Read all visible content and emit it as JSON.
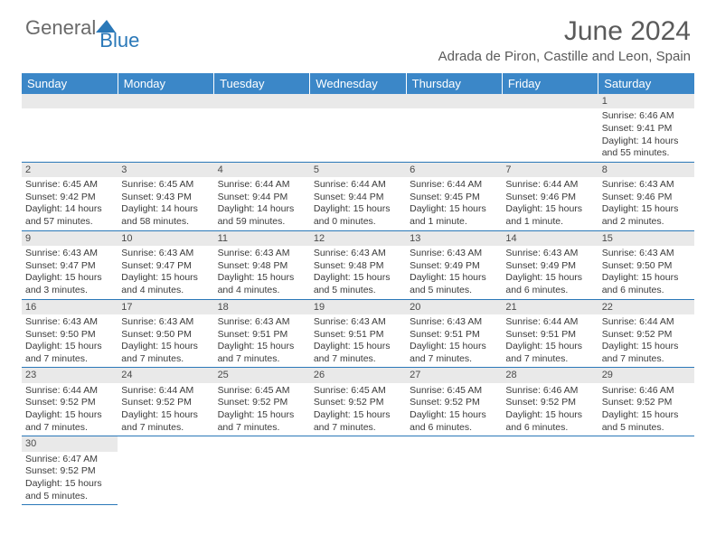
{
  "logo": {
    "text1": "General",
    "text2": "Blue"
  },
  "title": "June 2024",
  "location": "Adrada de Piron, Castille and Leon, Spain",
  "days_of_week": [
    "Sunday",
    "Monday",
    "Tuesday",
    "Wednesday",
    "Thursday",
    "Friday",
    "Saturday"
  ],
  "colors": {
    "header_bg": "#3b87c8",
    "header_text": "#ffffff",
    "row_border": "#2a78b8",
    "daynum_bg": "#e9e9e9",
    "logo_gray": "#6a6a6a",
    "logo_blue": "#2a78b8",
    "title_gray": "#5a5a5a"
  },
  "cells": [
    {
      "n": "",
      "t": ""
    },
    {
      "n": "",
      "t": ""
    },
    {
      "n": "",
      "t": ""
    },
    {
      "n": "",
      "t": ""
    },
    {
      "n": "",
      "t": ""
    },
    {
      "n": "",
      "t": ""
    },
    {
      "n": "1",
      "t": "Sunrise: 6:46 AM\nSunset: 9:41 PM\nDaylight: 14 hours and 55 minutes."
    },
    {
      "n": "2",
      "t": "Sunrise: 6:45 AM\nSunset: 9:42 PM\nDaylight: 14 hours and 57 minutes."
    },
    {
      "n": "3",
      "t": "Sunrise: 6:45 AM\nSunset: 9:43 PM\nDaylight: 14 hours and 58 minutes."
    },
    {
      "n": "4",
      "t": "Sunrise: 6:44 AM\nSunset: 9:44 PM\nDaylight: 14 hours and 59 minutes."
    },
    {
      "n": "5",
      "t": "Sunrise: 6:44 AM\nSunset: 9:44 PM\nDaylight: 15 hours and 0 minutes."
    },
    {
      "n": "6",
      "t": "Sunrise: 6:44 AM\nSunset: 9:45 PM\nDaylight: 15 hours and 1 minute."
    },
    {
      "n": "7",
      "t": "Sunrise: 6:44 AM\nSunset: 9:46 PM\nDaylight: 15 hours and 1 minute."
    },
    {
      "n": "8",
      "t": "Sunrise: 6:43 AM\nSunset: 9:46 PM\nDaylight: 15 hours and 2 minutes."
    },
    {
      "n": "9",
      "t": "Sunrise: 6:43 AM\nSunset: 9:47 PM\nDaylight: 15 hours and 3 minutes."
    },
    {
      "n": "10",
      "t": "Sunrise: 6:43 AM\nSunset: 9:47 PM\nDaylight: 15 hours and 4 minutes."
    },
    {
      "n": "11",
      "t": "Sunrise: 6:43 AM\nSunset: 9:48 PM\nDaylight: 15 hours and 4 minutes."
    },
    {
      "n": "12",
      "t": "Sunrise: 6:43 AM\nSunset: 9:48 PM\nDaylight: 15 hours and 5 minutes."
    },
    {
      "n": "13",
      "t": "Sunrise: 6:43 AM\nSunset: 9:49 PM\nDaylight: 15 hours and 5 minutes."
    },
    {
      "n": "14",
      "t": "Sunrise: 6:43 AM\nSunset: 9:49 PM\nDaylight: 15 hours and 6 minutes."
    },
    {
      "n": "15",
      "t": "Sunrise: 6:43 AM\nSunset: 9:50 PM\nDaylight: 15 hours and 6 minutes."
    },
    {
      "n": "16",
      "t": "Sunrise: 6:43 AM\nSunset: 9:50 PM\nDaylight: 15 hours and 7 minutes."
    },
    {
      "n": "17",
      "t": "Sunrise: 6:43 AM\nSunset: 9:50 PM\nDaylight: 15 hours and 7 minutes."
    },
    {
      "n": "18",
      "t": "Sunrise: 6:43 AM\nSunset: 9:51 PM\nDaylight: 15 hours and 7 minutes."
    },
    {
      "n": "19",
      "t": "Sunrise: 6:43 AM\nSunset: 9:51 PM\nDaylight: 15 hours and 7 minutes."
    },
    {
      "n": "20",
      "t": "Sunrise: 6:43 AM\nSunset: 9:51 PM\nDaylight: 15 hours and 7 minutes."
    },
    {
      "n": "21",
      "t": "Sunrise: 6:44 AM\nSunset: 9:51 PM\nDaylight: 15 hours and 7 minutes."
    },
    {
      "n": "22",
      "t": "Sunrise: 6:44 AM\nSunset: 9:52 PM\nDaylight: 15 hours and 7 minutes."
    },
    {
      "n": "23",
      "t": "Sunrise: 6:44 AM\nSunset: 9:52 PM\nDaylight: 15 hours and 7 minutes."
    },
    {
      "n": "24",
      "t": "Sunrise: 6:44 AM\nSunset: 9:52 PM\nDaylight: 15 hours and 7 minutes."
    },
    {
      "n": "25",
      "t": "Sunrise: 6:45 AM\nSunset: 9:52 PM\nDaylight: 15 hours and 7 minutes."
    },
    {
      "n": "26",
      "t": "Sunrise: 6:45 AM\nSunset: 9:52 PM\nDaylight: 15 hours and 7 minutes."
    },
    {
      "n": "27",
      "t": "Sunrise: 6:45 AM\nSunset: 9:52 PM\nDaylight: 15 hours and 6 minutes."
    },
    {
      "n": "28",
      "t": "Sunrise: 6:46 AM\nSunset: 9:52 PM\nDaylight: 15 hours and 6 minutes."
    },
    {
      "n": "29",
      "t": "Sunrise: 6:46 AM\nSunset: 9:52 PM\nDaylight: 15 hours and 5 minutes."
    },
    {
      "n": "30",
      "t": "Sunrise: 6:47 AM\nSunset: 9:52 PM\nDaylight: 15 hours and 5 minutes."
    },
    {
      "n": "",
      "t": ""
    },
    {
      "n": "",
      "t": ""
    },
    {
      "n": "",
      "t": ""
    },
    {
      "n": "",
      "t": ""
    },
    {
      "n": "",
      "t": ""
    },
    {
      "n": "",
      "t": ""
    }
  ]
}
